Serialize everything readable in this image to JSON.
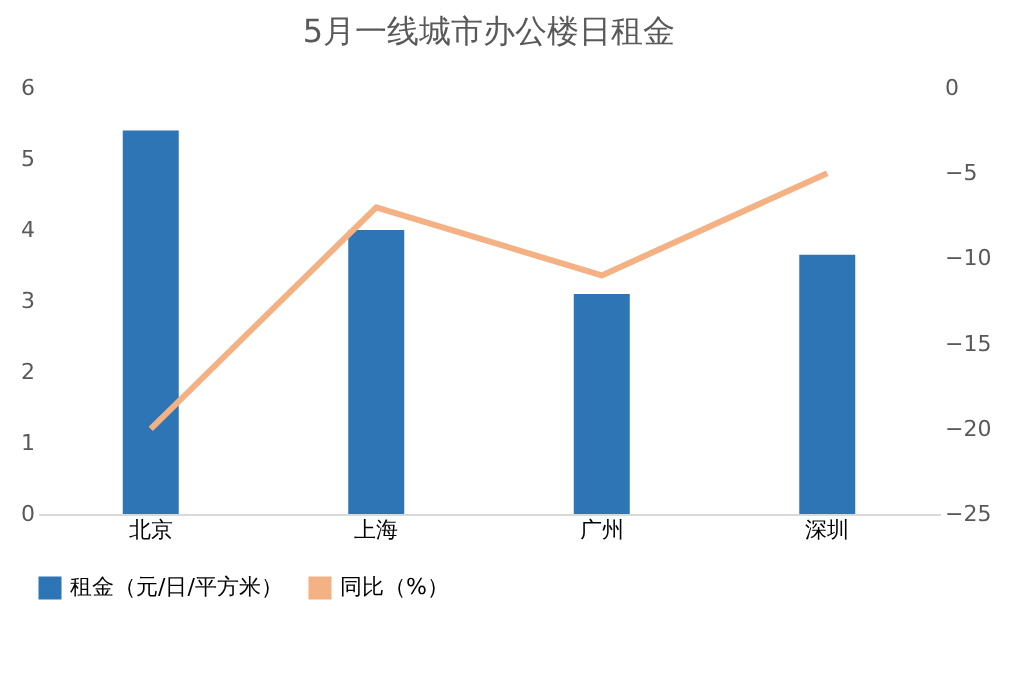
{
  "chart_data": {
    "type": "bar",
    "title": "5月一线城市办公楼日租金",
    "categories": [
      "北京",
      "上海",
      "广州",
      "深圳"
    ],
    "series": [
      {
        "name": "租金（元/日/平方米）",
        "color": "#2e75b6",
        "values": [
          5.4,
          4.0,
          3.1,
          3.65
        ]
      },
      {
        "name": "同比（%）",
        "type": "line",
        "axis": "y2",
        "color": "#f4b183",
        "values": [
          -20,
          -7,
          -11,
          -5
        ]
      }
    ],
    "ylim": [
      0,
      6
    ],
    "yticks": [
      0,
      1,
      2,
      3,
      4,
      5,
      6
    ],
    "y2lim": [
      -25,
      0
    ],
    "y2ticks": [
      -25,
      -20,
      -15,
      -10,
      -5,
      0
    ],
    "grid": false,
    "legend": "bottom",
    "marker": "none",
    "line_style": "solid"
  }
}
